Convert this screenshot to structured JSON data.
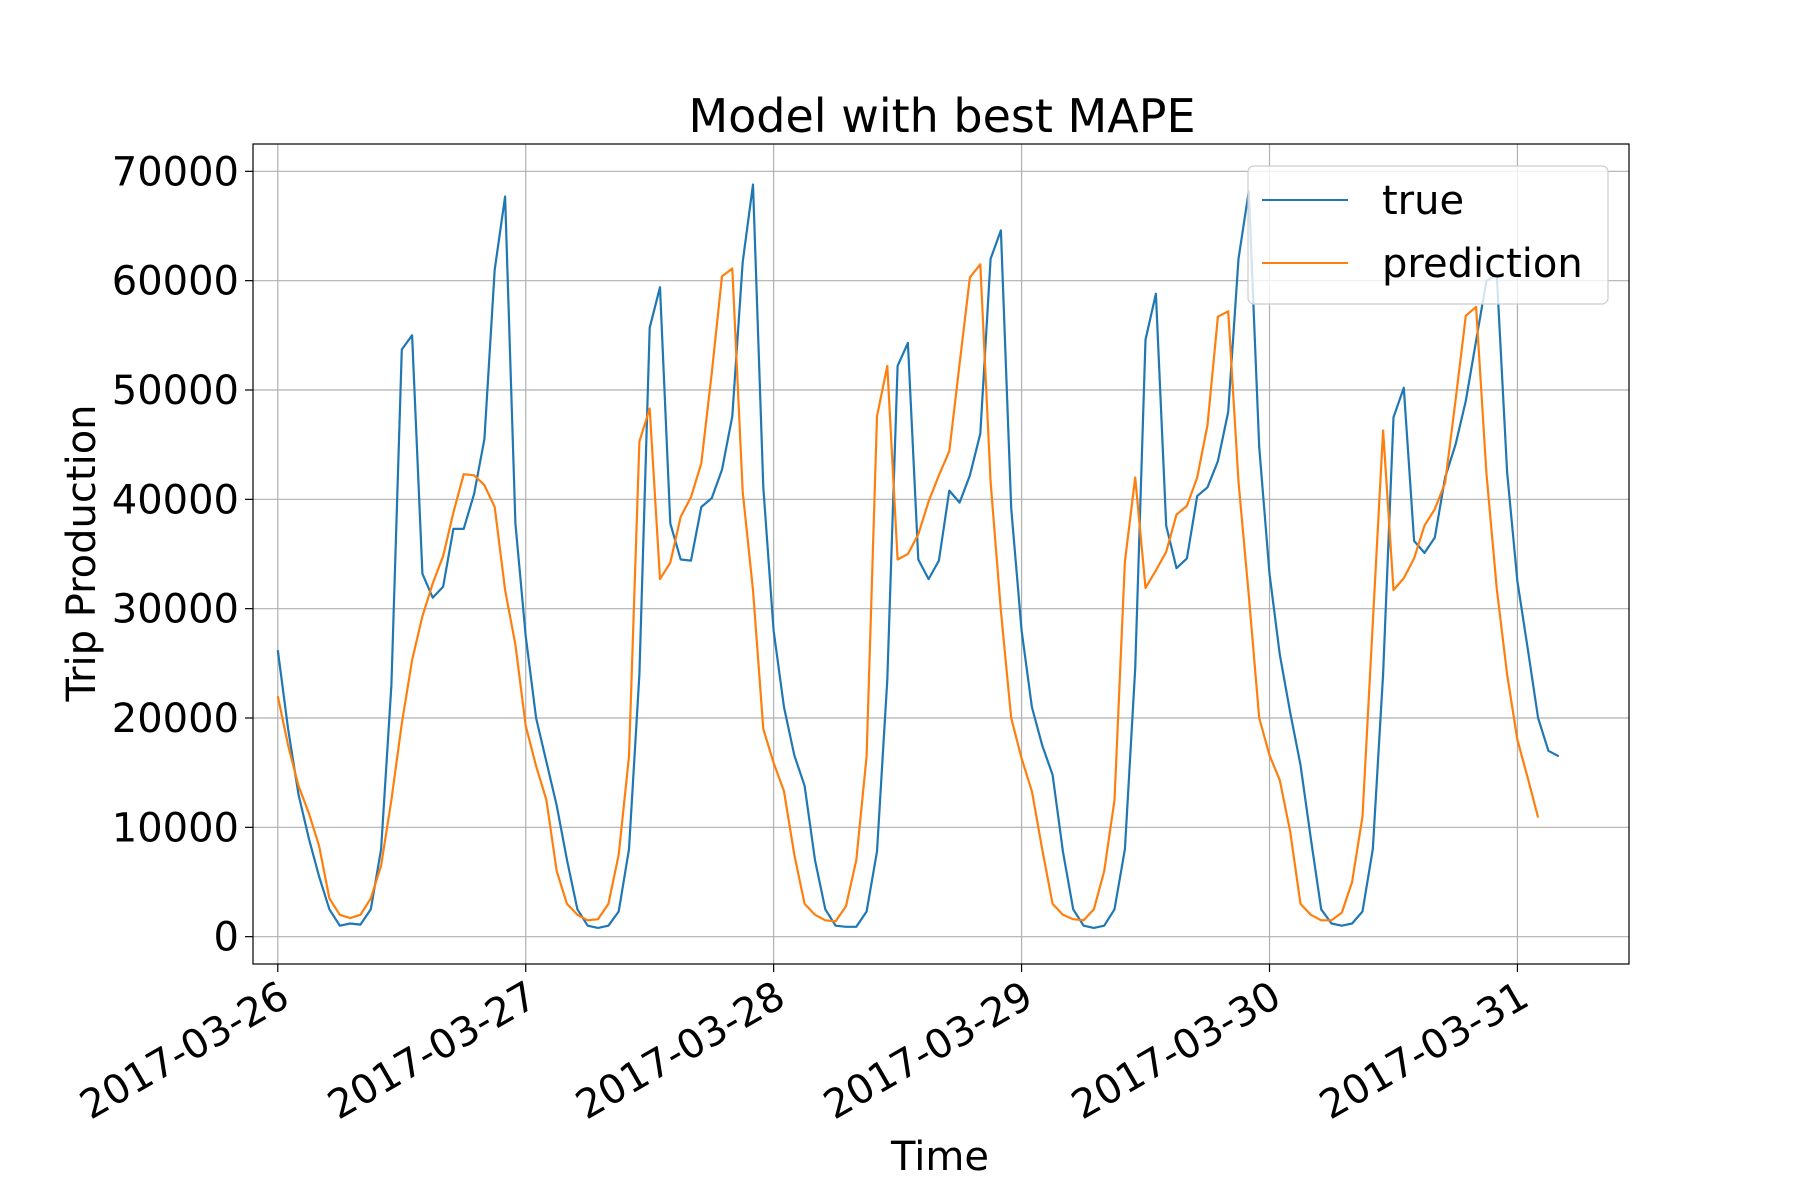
{
  "chart_data": {
    "type": "line",
    "title": "Model with best MAPE",
    "xlabel": "Time",
    "ylabel": "Trip Production",
    "xlim": [
      "2017-03-25T21:36",
      "2017-03-31T10:48"
    ],
    "ylim": [
      -2500,
      72500
    ],
    "x_ticks": [
      "2017-03-26",
      "2017-03-27",
      "2017-03-28",
      "2017-03-29",
      "2017-03-30",
      "2017-03-31"
    ],
    "y_ticks": [
      0,
      10000,
      20000,
      30000,
      40000,
      50000,
      60000,
      70000
    ],
    "y_tick_labels": [
      "0",
      "10000",
      "20000",
      "30000",
      "40000",
      "50000",
      "60000",
      "70000"
    ],
    "grid": true,
    "legend_position": "top-right",
    "x_start": "2017-03-26T00:00",
    "x_step_hours": 1,
    "series": [
      {
        "name": "true",
        "color": "#1f77b4",
        "values": [
          26200,
          19000,
          13000,
          9000,
          5500,
          2500,
          1000,
          1200,
          1100,
          2500,
          8000,
          23000,
          53700,
          55000,
          33200,
          31000,
          32000,
          37300,
          37300,
          40500,
          45500,
          61000,
          67700,
          37800,
          27500,
          20000,
          16000,
          12000,
          7000,
          2500,
          1000,
          800,
          1000,
          2300,
          8000,
          24000,
          55700,
          59400,
          37800,
          34500,
          34400,
          39300,
          40100,
          42700,
          47600,
          61700,
          68800,
          41100,
          28000,
          21000,
          16600,
          13800,
          7000,
          2500,
          1000,
          900,
          900,
          2300,
          7800,
          23500,
          52200,
          54300,
          34500,
          32700,
          34400,
          40800,
          39700,
          42200,
          46000,
          62000,
          64600,
          39200,
          28000,
          21000,
          17500,
          14800,
          7800,
          2500,
          1000,
          800,
          1000,
          2500,
          8000,
          24500,
          54600,
          58800,
          37600,
          33700,
          34600,
          40300,
          41100,
          43500,
          48000,
          62000,
          68200,
          44800,
          33200,
          25800,
          20500,
          15700,
          9000,
          2500,
          1200,
          1000,
          1200,
          2300,
          8000,
          24000,
          47500,
          50200,
          36200,
          35100,
          36500,
          42000,
          45000,
          49000,
          54500,
          60000,
          60500,
          42500,
          32500,
          26300,
          20000,
          17000,
          16500
        ]
      },
      {
        "name": "prediction",
        "color": "#ff7f0e",
        "values": [
          22000,
          17500,
          13800,
          11300,
          8300,
          3500,
          2000,
          1700,
          2000,
          3500,
          6500,
          12500,
          19500,
          25300,
          29300,
          32300,
          34800,
          38800,
          42300,
          42200,
          41300,
          39300,
          31700,
          26700,
          19300,
          15600,
          12500,
          6000,
          3000,
          2000,
          1500,
          1600,
          3000,
          7500,
          16500,
          45300,
          48300,
          32700,
          34200,
          38400,
          40200,
          43300,
          51500,
          60400,
          61100,
          40700,
          31700,
          19000,
          15900,
          13300,
          7500,
          3000,
          2000,
          1500,
          1400,
          2800,
          7000,
          16500,
          47600,
          52200,
          34500,
          35000,
          36800,
          39800,
          42200,
          44400,
          52400,
          60300,
          61500,
          41600,
          29800,
          20000,
          16300,
          13300,
          8000,
          3000,
          2000,
          1600,
          1500,
          2500,
          6000,
          12500,
          34300,
          42000,
          31900,
          33500,
          35200,
          38600,
          39400,
          42000,
          46800,
          56700,
          57200,
          41600,
          31200,
          20000,
          16600,
          14300,
          9600,
          3000,
          2000,
          1500,
          1500,
          2200,
          5000,
          11000,
          28700,
          46300,
          31700,
          32800,
          34600,
          37600,
          39100,
          41500,
          49000,
          56800,
          57600,
          42400,
          31800,
          24000,
          18000,
          14500,
          10900
        ]
      }
    ]
  }
}
